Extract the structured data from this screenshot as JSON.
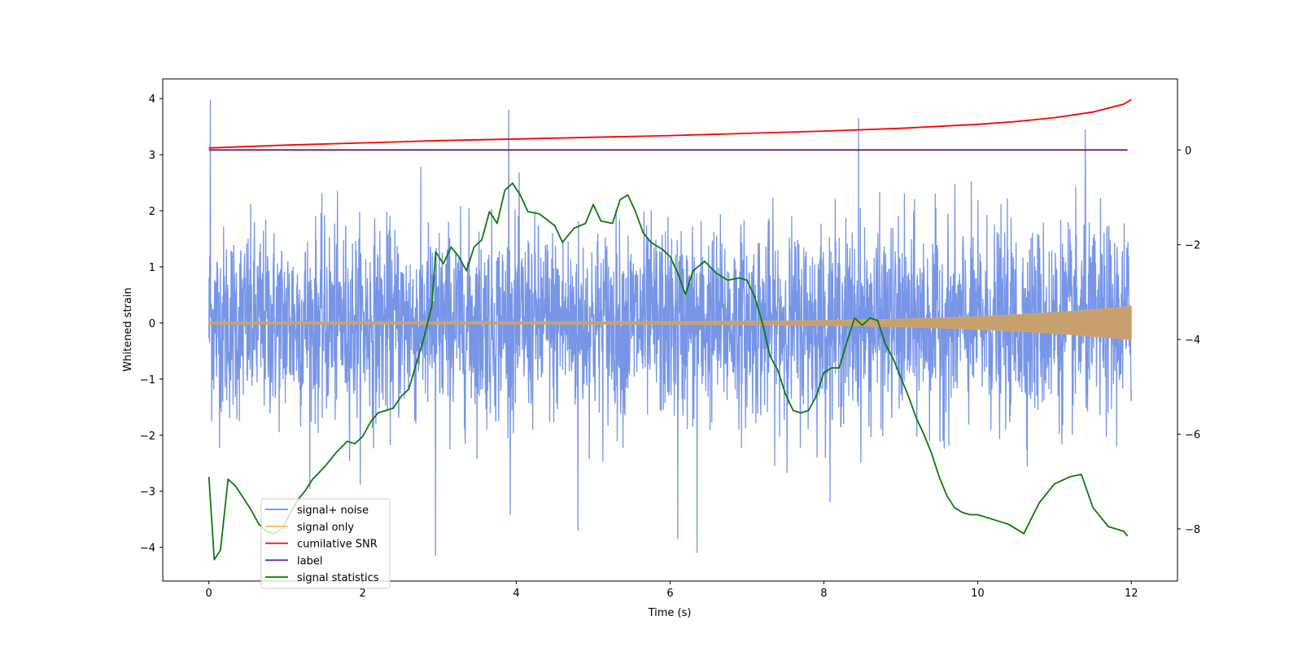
{
  "chart_data": {
    "type": "line",
    "xlabel": "Time (s)",
    "ylabel": "Whitened strain",
    "xlim": [
      -0.6,
      12.6
    ],
    "ylim_left": [
      -4.6,
      4.35
    ],
    "ylim_right": [
      -9.1,
      1.5
    ],
    "x_ticks": [
      0,
      2,
      4,
      6,
      8,
      10,
      12
    ],
    "y_ticks_left": [
      -4,
      -3,
      -2,
      -1,
      0,
      1,
      2,
      3,
      4
    ],
    "y_ticks_right": [
      -8,
      -6,
      -4,
      -2,
      0
    ],
    "legend_position": "lower-left",
    "series": [
      {
        "name": "signal+ noise",
        "color": "#6f8fe6",
        "axis": "left",
        "style": "dense-noise",
        "x_range": [
          0,
          12
        ],
        "amplitude_std": 1.0,
        "peaks": [
          [
            0.02,
            3.98
          ],
          [
            3.9,
            3.8
          ],
          [
            8.45,
            3.65
          ],
          [
            11.4,
            3.45
          ],
          [
            6.35,
            -4.1
          ],
          [
            2.95,
            -4.15
          ],
          [
            6.1,
            -3.85
          ],
          [
            4.8,
            -3.7
          ]
        ]
      },
      {
        "name": "signal only",
        "color": "#f2c35c",
        "axis": "left",
        "style": "chirp-envelope",
        "x_range": [
          0,
          12
        ],
        "amplitude_start": 0.02,
        "amplitude_end": 0.3
      },
      {
        "name": "cumilative SNR",
        "color": "#ff0000",
        "axis": "left",
        "x": [
          0,
          1,
          2,
          3,
          4,
          5,
          6,
          7,
          8,
          9,
          10,
          10.5,
          11,
          11.5,
          11.9,
          12.0
        ],
        "values": [
          3.12,
          3.17,
          3.21,
          3.25,
          3.28,
          3.31,
          3.34,
          3.38,
          3.42,
          3.47,
          3.54,
          3.59,
          3.66,
          3.76,
          3.9,
          3.98
        ]
      },
      {
        "name": "label",
        "color": "#6a1b6e",
        "axis": "right",
        "x": [
          0,
          11.95
        ],
        "values": [
          0,
          0
        ]
      },
      {
        "name": "signal statistics",
        "color": "#0a7a0a",
        "axis": "right",
        "x": [
          0,
          0.07,
          0.15,
          0.25,
          0.35,
          0.45,
          0.55,
          0.65,
          0.75,
          0.85,
          0.95,
          1.05,
          1.15,
          1.25,
          1.35,
          1.5,
          1.65,
          1.8,
          1.9,
          2.0,
          2.1,
          2.2,
          2.3,
          2.4,
          2.5,
          2.6,
          2.7,
          2.8,
          2.9,
          2.95,
          3.05,
          3.15,
          3.25,
          3.35,
          3.45,
          3.55,
          3.65,
          3.75,
          3.85,
          3.95,
          4.05,
          4.15,
          4.3,
          4.5,
          4.6,
          4.75,
          4.9,
          5.0,
          5.1,
          5.25,
          5.35,
          5.45,
          5.55,
          5.65,
          5.75,
          5.9,
          6.0,
          6.1,
          6.2,
          6.3,
          6.45,
          6.6,
          6.75,
          6.9,
          7.0,
          7.1,
          7.2,
          7.3,
          7.4,
          7.5,
          7.6,
          7.7,
          7.8,
          7.9,
          8.0,
          8.1,
          8.2,
          8.3,
          8.4,
          8.5,
          8.6,
          8.7,
          8.8,
          8.9,
          9.0,
          9.1,
          9.2,
          9.3,
          9.4,
          9.5,
          9.6,
          9.7,
          9.8,
          9.9,
          10.0,
          10.2,
          10.4,
          10.6,
          10.8,
          11.0,
          11.2,
          11.35,
          11.5,
          11.7,
          11.9,
          11.95
        ],
        "values": [
          -6.9,
          -8.65,
          -8.45,
          -6.95,
          -7.1,
          -7.35,
          -7.6,
          -7.9,
          -8.05,
          -8.1,
          -8.0,
          -7.7,
          -7.4,
          -7.2,
          -6.95,
          -6.7,
          -6.4,
          -6.15,
          -6.2,
          -6.05,
          -5.75,
          -5.55,
          -5.5,
          -5.45,
          -5.2,
          -5.05,
          -4.5,
          -3.95,
          -3.3,
          -2.15,
          -2.4,
          -2.05,
          -2.25,
          -2.55,
          -2.05,
          -1.9,
          -1.3,
          -1.55,
          -0.85,
          -0.7,
          -0.95,
          -1.3,
          -1.35,
          -1.6,
          -1.95,
          -1.65,
          -1.55,
          -1.15,
          -1.5,
          -1.55,
          -1.05,
          -0.95,
          -1.3,
          -1.75,
          -1.95,
          -2.1,
          -2.25,
          -2.6,
          -3.05,
          -2.55,
          -2.35,
          -2.6,
          -2.75,
          -2.7,
          -2.75,
          -3.1,
          -3.65,
          -4.35,
          -4.65,
          -5.15,
          -5.5,
          -5.55,
          -5.5,
          -5.2,
          -4.7,
          -4.6,
          -4.6,
          -4.05,
          -3.55,
          -3.7,
          -3.55,
          -3.6,
          -4.1,
          -4.4,
          -4.8,
          -5.2,
          -5.65,
          -6.0,
          -6.4,
          -6.9,
          -7.3,
          -7.55,
          -7.65,
          -7.7,
          -7.7,
          -7.8,
          -7.9,
          -8.1,
          -7.45,
          -7.05,
          -6.9,
          -6.85,
          -7.55,
          -7.95,
          -8.05,
          -8.15
        ]
      }
    ]
  }
}
